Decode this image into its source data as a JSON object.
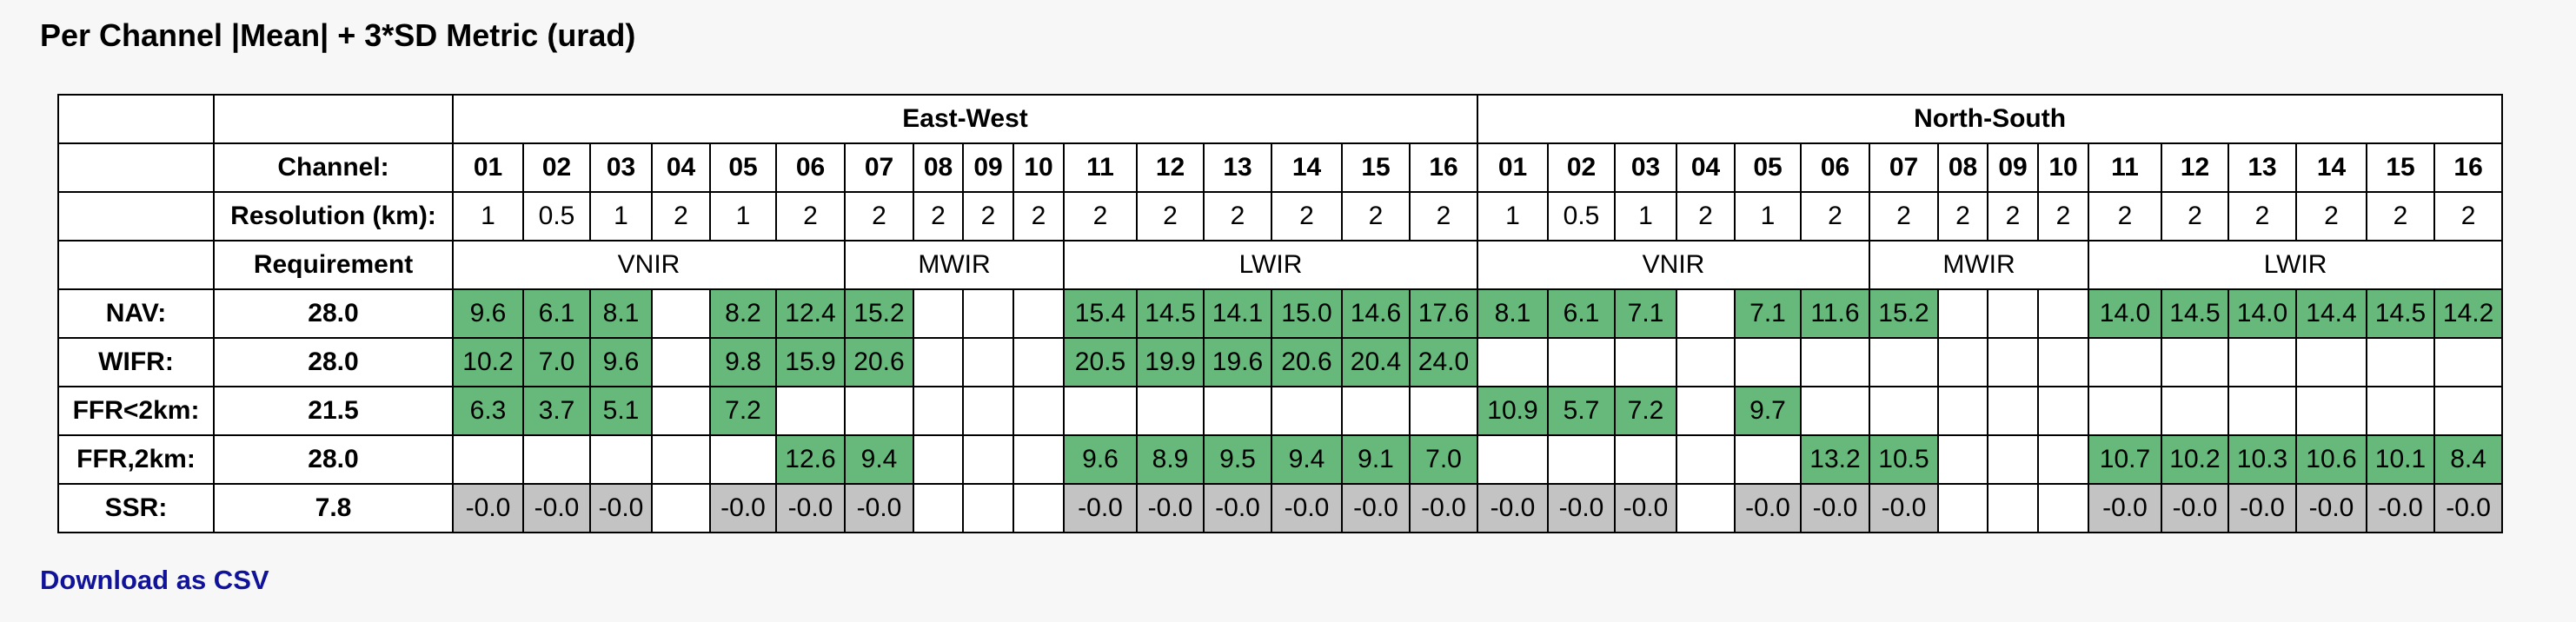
{
  "title": "Per Channel |Mean| + 3*SD Metric (urad)",
  "download_label": "Download as CSV",
  "colors": {
    "pass": "#66b97a",
    "ssr": "#c3c3c3",
    "link": "#10129a"
  },
  "groups": [
    "East-West",
    "North-South"
  ],
  "labels": {
    "channel": "Channel:",
    "resolution": "Resolution (km):",
    "requirement": "Requirement"
  },
  "channels": [
    "01",
    "02",
    "03",
    "04",
    "05",
    "06",
    "07",
    "08",
    "09",
    "10",
    "11",
    "12",
    "13",
    "14",
    "15",
    "16"
  ],
  "resolutions": [
    "1",
    "0.5",
    "1",
    "2",
    "1",
    "2",
    "2",
    "2",
    "2",
    "2",
    "2",
    "2",
    "2",
    "2",
    "2",
    "2"
  ],
  "bands": [
    {
      "name": "VNIR",
      "span": 6
    },
    {
      "name": "MWIR",
      "span": 4
    },
    {
      "name": "LWIR",
      "span": 6
    }
  ],
  "rows": [
    {
      "label": "NAV:",
      "requirement": "28.0",
      "style": "g",
      "ew": [
        "9.6",
        "6.1",
        "8.1",
        "",
        "8.2",
        "12.4",
        "15.2",
        "",
        "",
        "",
        "15.4",
        "14.5",
        "14.1",
        "15.0",
        "14.6",
        "17.6"
      ],
      "ns": [
        "8.1",
        "6.1",
        "7.1",
        "",
        "7.1",
        "11.6",
        "15.2",
        "",
        "",
        "",
        "14.0",
        "14.5",
        "14.0",
        "14.4",
        "14.5",
        "14.2"
      ]
    },
    {
      "label": "WIFR:",
      "requirement": "28.0",
      "style": "g",
      "ew": [
        "10.2",
        "7.0",
        "9.6",
        "",
        "9.8",
        "15.9",
        "20.6",
        "",
        "",
        "",
        "20.5",
        "19.9",
        "19.6",
        "20.6",
        "20.4",
        "24.0"
      ],
      "ns": [
        "",
        "",
        "",
        "",
        "",
        "",
        "",
        "",
        "",
        "",
        "",
        "",
        "",
        "",
        "",
        ""
      ]
    },
    {
      "label": "FFR<2km:",
      "requirement": "21.5",
      "style": "g",
      "ew": [
        "6.3",
        "3.7",
        "5.1",
        "",
        "7.2",
        "",
        "",
        "",
        "",
        "",
        "",
        "",
        "",
        "",
        "",
        ""
      ],
      "ns": [
        "10.9",
        "5.7",
        "7.2",
        "",
        "9.7",
        "",
        "",
        "",
        "",
        "",
        "",
        "",
        "",
        "",
        "",
        ""
      ]
    },
    {
      "label": "FFR,2km:",
      "requirement": "28.0",
      "style": "g",
      "ew": [
        "",
        "",
        "",
        "",
        "",
        "12.6",
        "9.4",
        "",
        "",
        "",
        "9.6",
        "8.9",
        "9.5",
        "9.4",
        "9.1",
        "7.0"
      ],
      "ns": [
        "",
        "",
        "",
        "",
        "",
        "13.2",
        "10.5",
        "",
        "",
        "",
        "10.7",
        "10.2",
        "10.3",
        "10.6",
        "10.1",
        "8.4"
      ]
    },
    {
      "label": "SSR:",
      "requirement": "7.8",
      "style": "s",
      "ew": [
        "-0.0",
        "-0.0",
        "-0.0",
        "",
        "-0.0",
        "-0.0",
        "-0.0",
        "",
        "",
        "",
        "-0.0",
        "-0.0",
        "-0.0",
        "-0.0",
        "-0.0",
        "-0.0"
      ],
      "ns": [
        "-0.0",
        "-0.0",
        "-0.0",
        "",
        "-0.0",
        "-0.0",
        "-0.0",
        "",
        "",
        "",
        "-0.0",
        "-0.0",
        "-0.0",
        "-0.0",
        "-0.0",
        "-0.0"
      ]
    }
  ]
}
